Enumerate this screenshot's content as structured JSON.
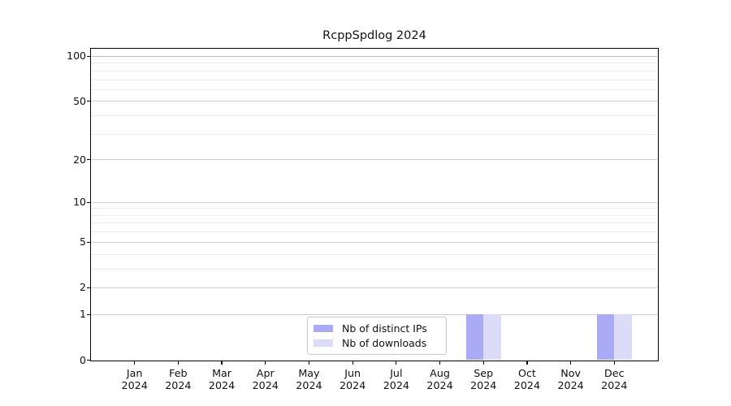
{
  "chart_data": {
    "type": "bar",
    "title": "RcppSpdlog 2024",
    "categories": [
      "Jan",
      "Feb",
      "Mar",
      "Apr",
      "May",
      "Jun",
      "Jul",
      "Aug",
      "Sep",
      "Oct",
      "Nov",
      "Dec"
    ],
    "category_year": "2024",
    "series": [
      {
        "name": "Nb of distinct IPs",
        "color": "#aaaaf5",
        "values": [
          0,
          0,
          0,
          0,
          0,
          0,
          0,
          0,
          1,
          0,
          0,
          1
        ]
      },
      {
        "name": "Nb of downloads",
        "color": "#dcdcf9",
        "values": [
          0,
          0,
          0,
          0,
          0,
          0,
          0,
          0,
          1,
          0,
          0,
          1
        ]
      }
    ],
    "xlabel": "",
    "ylabel": "",
    "yscale": "log1p",
    "ylim": [
      0,
      112.5
    ],
    "y_major_ticks": [
      0,
      1,
      2,
      5,
      10,
      20,
      50,
      100
    ],
    "y_minor_ticks": [
      3,
      4,
      6,
      7,
      8,
      9,
      30,
      40,
      60,
      70,
      80,
      90
    ],
    "grid": {
      "major_color": "#cdcdcd",
      "minor_color": "#ebebeb",
      "top_major_color": "#bdbdbd"
    },
    "axis_color": "#000000",
    "legend": {
      "position": "lower-center-inside"
    }
  }
}
